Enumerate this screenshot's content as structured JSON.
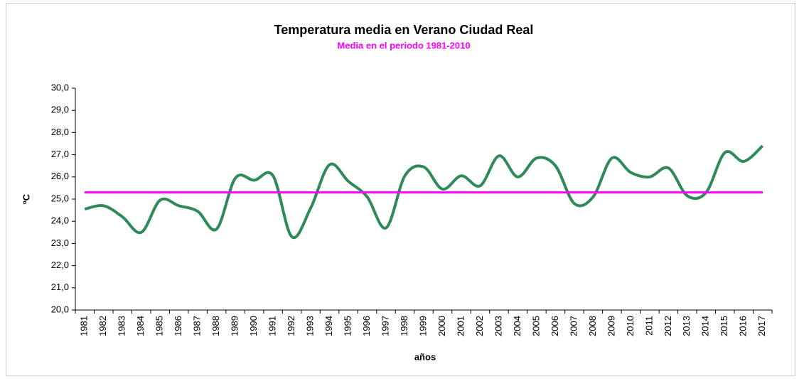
{
  "chart_data": {
    "type": "line",
    "title": "Temperatura media en Verano Ciudad Real",
    "subtitle": "Media en el periodo 1981-2010",
    "x_label": "años",
    "y_label": "ºC",
    "categories": [
      "1981",
      "1982",
      "1983",
      "1984",
      "1985",
      "1986",
      "1987",
      "1988",
      "1989",
      "1990",
      "1991",
      "1992",
      "1993",
      "1994",
      "1995",
      "1996",
      "1997",
      "1998",
      "1999",
      "2000",
      "2001",
      "2002",
      "2003",
      "2004",
      "2005",
      "2006",
      "2007",
      "2008",
      "2009",
      "2010",
      "2011",
      "2012",
      "2013",
      "2014",
      "2015",
      "2016",
      "2017"
    ],
    "values": [
      24.55,
      24.7,
      24.2,
      23.5,
      24.95,
      24.7,
      24.45,
      23.65,
      25.95,
      25.85,
      26.05,
      23.3,
      24.6,
      26.55,
      25.8,
      25.1,
      23.7,
      26.05,
      26.45,
      25.45,
      26.05,
      25.6,
      26.95,
      26.0,
      26.85,
      26.5,
      24.8,
      25.1,
      26.85,
      26.2,
      26.0,
      26.4,
      25.15,
      25.3,
      27.1,
      26.7,
      27.4
    ],
    "color": "#2e8b57",
    "reference_line": {
      "value": 25.3,
      "color": "#ff00ff"
    },
    "ylim": [
      20,
      30
    ],
    "yticks": [
      {
        "value": 20,
        "label": "20,0"
      },
      {
        "value": 21,
        "label": "21,0"
      },
      {
        "value": 22,
        "label": "22,0"
      },
      {
        "value": 23,
        "label": "23,0"
      },
      {
        "value": 24,
        "label": "24,0"
      },
      {
        "value": 25,
        "label": "25,0"
      },
      {
        "value": 26,
        "label": "26,0"
      },
      {
        "value": 27,
        "label": "27,0"
      },
      {
        "value": 28,
        "label": "28,0"
      },
      {
        "value": 29,
        "label": "29,0"
      },
      {
        "value": 30,
        "label": "30,0"
      }
    ],
    "grid": false
  }
}
